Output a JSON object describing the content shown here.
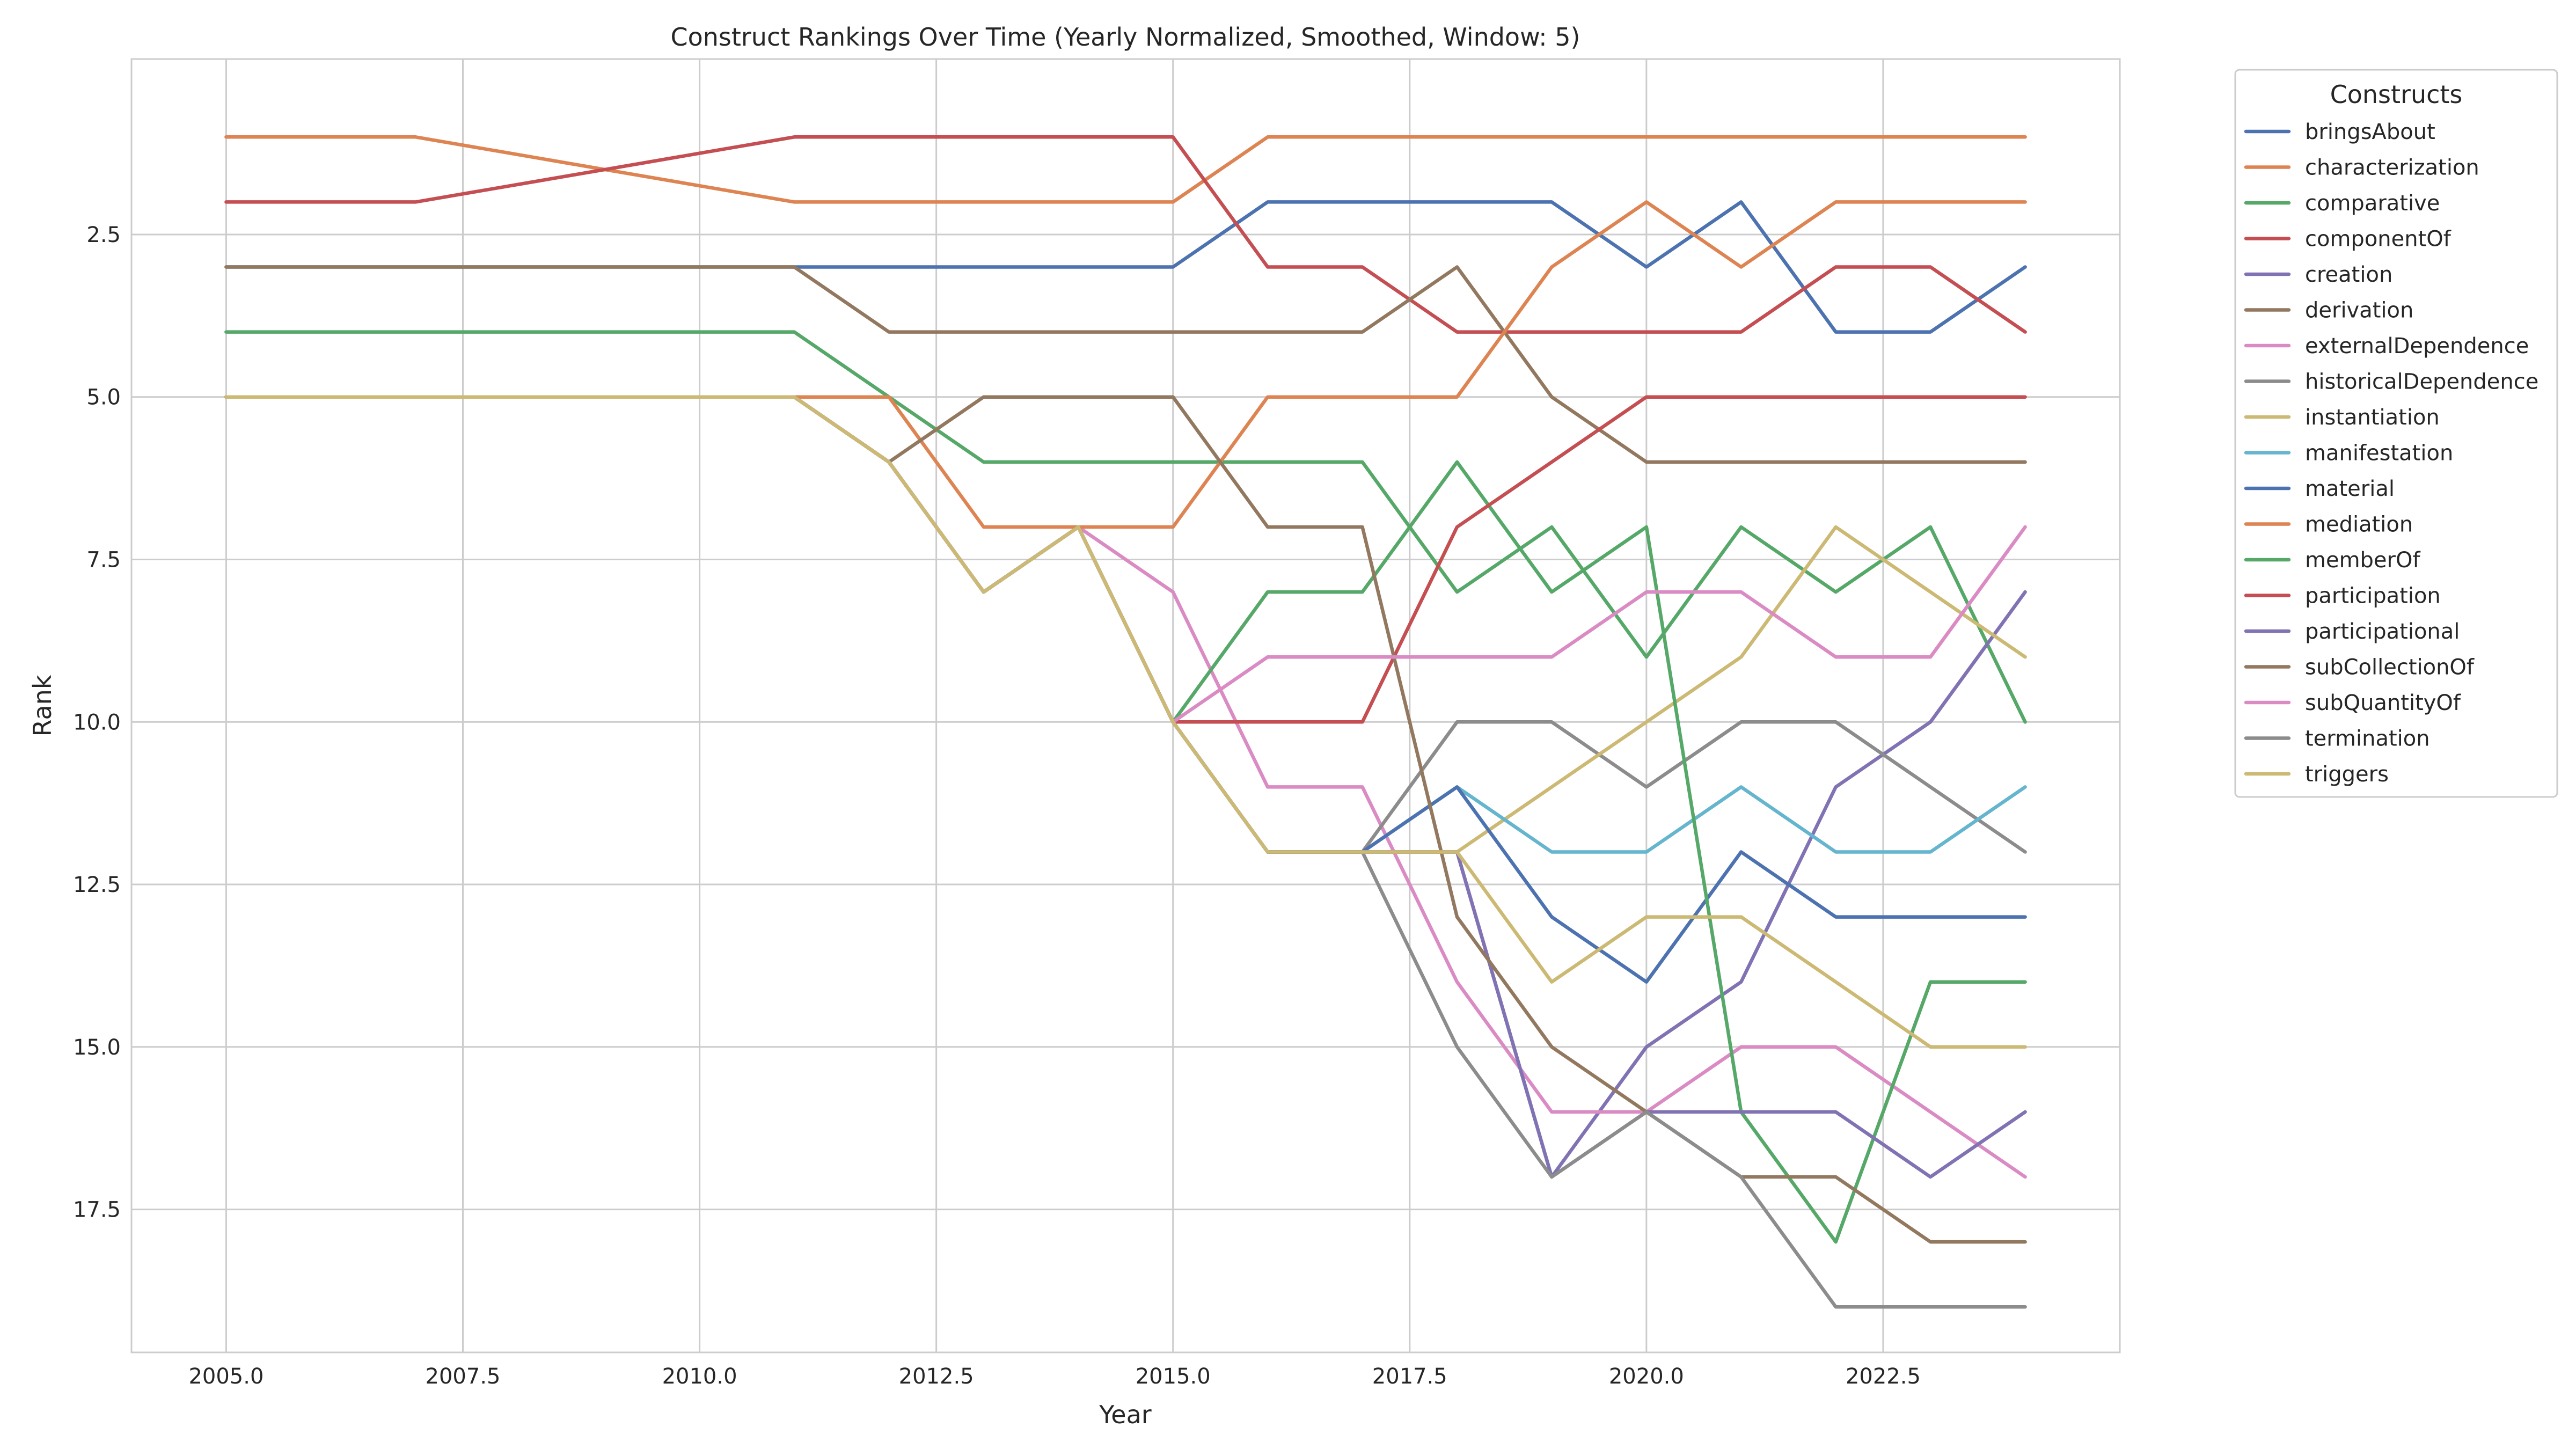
{
  "chart_data": {
    "type": "line",
    "title": "Construct Rankings Over Time (Yearly Normalized, Smoothed, Window: 5)",
    "xlabel": "Year",
    "ylabel": "Rank",
    "xlim": [
      2004,
      2025
    ],
    "ylim": [
      19.7,
      -0.2
    ],
    "y_inverted": true,
    "grid": true,
    "xticks": [
      2005.0,
      2007.5,
      2010.0,
      2012.5,
      2015.0,
      2017.5,
      2020.0,
      2022.5
    ],
    "xtick_labels": [
      "2005.0",
      "2007.5",
      "2010.0",
      "2012.5",
      "2015.0",
      "2017.5",
      "2020.0",
      "2022.5"
    ],
    "yticks": [
      2.5,
      5.0,
      7.5,
      10.0,
      12.5,
      15.0,
      17.5
    ],
    "ytick_labels": [
      "2.5",
      "5.0",
      "7.5",
      "10.0",
      "12.5",
      "15.0",
      "17.5"
    ],
    "legend_title": "Constructs",
    "legend_position": "outside-right-top",
    "x": [
      2005,
      2006,
      2007,
      2008,
      2009,
      2010,
      2011,
      2012,
      2013,
      2014,
      2015,
      2016,
      2017,
      2018,
      2019,
      2020,
      2021,
      2022,
      2023,
      2024
    ],
    "series": [
      {
        "name": "bringsAbout",
        "color": "#4c72b0",
        "values": [
          3,
          3,
          3,
          3,
          3,
          3,
          3,
          3,
          3,
          3,
          3,
          2,
          2,
          2,
          2,
          3,
          2,
          4,
          4,
          3
        ]
      },
      {
        "name": "characterization",
        "color": "#dd8452",
        "values": [
          1,
          1,
          1,
          1.25,
          1.5,
          1.75,
          2,
          2,
          2,
          2,
          2,
          1,
          1,
          1,
          1,
          1,
          1,
          1,
          1,
          1
        ]
      },
      {
        "name": "comparative",
        "color": "#55a868",
        "values": [
          4,
          4,
          4,
          4,
          4,
          4,
          4,
          5,
          6,
          6,
          6,
          6,
          6,
          8,
          7,
          9,
          7,
          8,
          7,
          10
        ]
      },
      {
        "name": "componentOf",
        "color": "#c44e52",
        "values": [
          2,
          2,
          2,
          1.75,
          1.5,
          1.25,
          1,
          1,
          1,
          1,
          1,
          3,
          3,
          4,
          4,
          4,
          4,
          3,
          3,
          4
        ]
      },
      {
        "name": "creation",
        "color": "#8172b3",
        "values": [
          5,
          5,
          5,
          5,
          5,
          5,
          5,
          6,
          8,
          7,
          10,
          12,
          12,
          12,
          17,
          15,
          14,
          11,
          10,
          8
        ]
      },
      {
        "name": "derivation",
        "color": "#937860",
        "values": [
          3,
          3,
          3,
          3,
          3,
          3,
          3,
          4,
          4,
          4,
          4,
          4,
          4,
          3,
          5,
          6,
          6,
          6,
          6,
          6
        ]
      },
      {
        "name": "externalDependence",
        "color": "#da8bc3",
        "values": [
          5,
          5,
          5,
          5,
          5,
          5,
          5,
          6,
          8,
          7,
          8,
          11,
          11,
          14,
          16,
          16,
          15,
          15,
          16,
          17
        ]
      },
      {
        "name": "historicalDependence",
        "color": "#8c8c8c",
        "values": [
          5,
          5,
          5,
          5,
          5,
          5,
          5,
          6,
          8,
          7,
          10,
          12,
          12,
          10,
          10,
          11,
          10,
          10,
          11,
          12
        ]
      },
      {
        "name": "instantiation",
        "color": "#ccb974",
        "values": [
          5,
          5,
          5,
          5,
          5,
          5,
          5,
          6,
          8,
          7,
          10,
          12,
          12,
          12,
          11,
          10,
          9,
          7,
          8,
          9
        ]
      },
      {
        "name": "manifestation",
        "color": "#64b5cd",
        "values": [
          5,
          5,
          5,
          5,
          5,
          5,
          5,
          6,
          8,
          7,
          10,
          12,
          12,
          11,
          12,
          12,
          11,
          12,
          12,
          11
        ]
      },
      {
        "name": "material",
        "color": "#4c72b0",
        "values": [
          5,
          5,
          5,
          5,
          5,
          5,
          5,
          6,
          8,
          7,
          10,
          12,
          12,
          11,
          13,
          14,
          12,
          13,
          13,
          13
        ]
      },
      {
        "name": "mediation",
        "color": "#dd8452",
        "values": [
          5,
          5,
          5,
          5,
          5,
          5,
          5,
          5,
          7,
          7,
          7,
          5,
          5,
          5,
          3,
          2,
          3,
          2,
          2,
          2
        ]
      },
      {
        "name": "memberOf",
        "color": "#55a868",
        "values": [
          5,
          5,
          5,
          5,
          5,
          5,
          5,
          6,
          8,
          7,
          10,
          8,
          8,
          6,
          8,
          7,
          16,
          18,
          14,
          14
        ]
      },
      {
        "name": "participation",
        "color": "#c44e52",
        "values": [
          5,
          5,
          5,
          5,
          5,
          5,
          5,
          6,
          8,
          7,
          10,
          10,
          10,
          7,
          6,
          5,
          5,
          5,
          5,
          5
        ]
      },
      {
        "name": "participational",
        "color": "#8172b3",
        "values": [
          5,
          5,
          5,
          5,
          5,
          5,
          5,
          6,
          8,
          7,
          10,
          12,
          12,
          12,
          17,
          16,
          16,
          16,
          17,
          16
        ]
      },
      {
        "name": "subCollectionOf",
        "color": "#937860",
        "values": [
          5,
          5,
          5,
          5,
          5,
          5,
          5,
          6,
          5,
          5,
          5,
          7,
          7,
          13,
          15,
          16,
          17,
          17,
          18,
          18
        ]
      },
      {
        "name": "subQuantityOf",
        "color": "#da8bc3",
        "values": [
          5,
          5,
          5,
          5,
          5,
          5,
          5,
          6,
          8,
          7,
          10,
          9,
          9,
          9,
          9,
          8,
          8,
          9,
          9,
          7
        ]
      },
      {
        "name": "termination",
        "color": "#8c8c8c",
        "values": [
          5,
          5,
          5,
          5,
          5,
          5,
          5,
          6,
          8,
          7,
          10,
          12,
          12,
          15,
          17,
          16,
          17,
          19,
          19,
          19
        ]
      },
      {
        "name": "triggers",
        "color": "#ccb974",
        "values": [
          5,
          5,
          5,
          5,
          5,
          5,
          5,
          6,
          8,
          7,
          10,
          12,
          12,
          12,
          14,
          13,
          13,
          14,
          15,
          15
        ]
      }
    ]
  }
}
